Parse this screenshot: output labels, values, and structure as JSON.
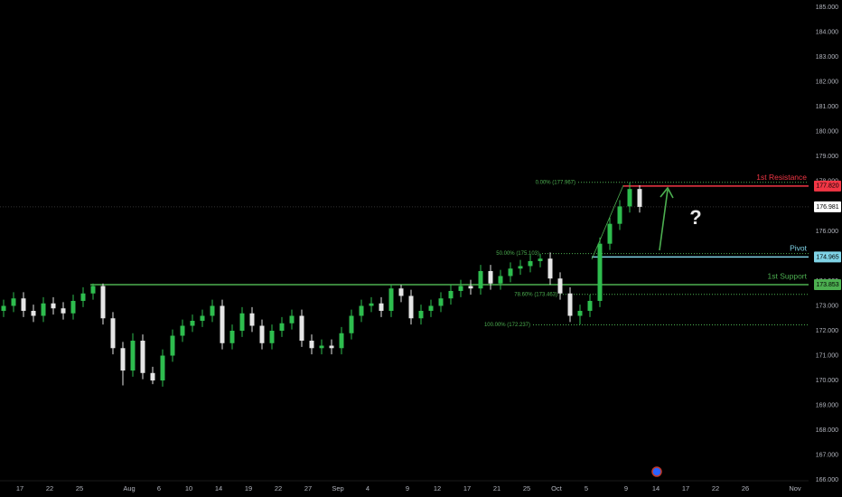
{
  "chart_data": {
    "type": "candlestick",
    "categories": [
      null,
      null,
      "17",
      null,
      null,
      "22",
      null,
      null,
      "25",
      null,
      null,
      null,
      null,
      "Aug",
      null,
      null,
      "6",
      null,
      null,
      "10",
      null,
      null,
      "14",
      null,
      null,
      "19",
      null,
      null,
      "22",
      null,
      null,
      "27",
      null,
      null,
      "Sep",
      null,
      null,
      "4",
      null,
      null,
      null,
      "9",
      null,
      null,
      "12",
      null,
      null,
      "17",
      null,
      null,
      "21",
      null,
      null,
      "25",
      null,
      null,
      "Oct",
      null,
      null,
      "5",
      null,
      null,
      null,
      "9",
      null,
      null,
      "14",
      null,
      null,
      "17",
      null,
      null,
      "22",
      null,
      null,
      "26",
      null,
      null,
      null,
      null,
      "Nov"
    ],
    "open": [
      172.8,
      173.0,
      173.3,
      172.8,
      172.6,
      173.1,
      172.9,
      172.7,
      173.2,
      173.5,
      173.8,
      172.5,
      171.3,
      170.4,
      171.6,
      170.3,
      170.0,
      171.0,
      171.8,
      172.2,
      172.4,
      172.6,
      173.0,
      171.5,
      172.0,
      172.7,
      172.2,
      171.5,
      172.0,
      172.3,
      172.6,
      171.6,
      171.3,
      171.4,
      171.3,
      171.9,
      172.6,
      173.0,
      173.1,
      172.8,
      173.7,
      173.4,
      172.5,
      172.8,
      173.0,
      173.3,
      173.6,
      173.8,
      173.7,
      174.4,
      173.9,
      174.2,
      174.5,
      174.6,
      174.8,
      174.9,
      174.1,
      173.5,
      172.6,
      172.8,
      173.2,
      175.5,
      176.3,
      177.0,
      177.7,
      null,
      null,
      null,
      null,
      null,
      null,
      null,
      null,
      null,
      null,
      null,
      null,
      null,
      null,
      null,
      null
    ],
    "high": [
      173.25,
      173.55,
      173.55,
      173.05,
      173.35,
      173.35,
      173.15,
      173.45,
      173.75,
      173.9,
      173.9,
      172.75,
      171.55,
      171.9,
      171.85,
      170.55,
      171.25,
      172.05,
      172.45,
      172.65,
      172.85,
      173.25,
      173.25,
      172.25,
      172.95,
      172.95,
      172.45,
      172.25,
      172.55,
      172.85,
      172.85,
      171.85,
      171.65,
      171.65,
      172.15,
      172.85,
      173.25,
      173.35,
      173.35,
      173.85,
      173.85,
      173.65,
      173.05,
      173.25,
      173.55,
      173.85,
      174.05,
      174.05,
      174.65,
      174.65,
      174.45,
      174.75,
      174.85,
      175.05,
      175.1,
      175.15,
      174.35,
      173.75,
      173.05,
      173.45,
      175.75,
      176.55,
      177.25,
      177.967,
      177.85,
      null,
      null,
      null,
      null,
      null,
      null,
      null,
      null,
      null,
      null,
      null,
      null,
      null,
      null,
      null,
      null
    ],
    "low": [
      172.55,
      172.75,
      172.55,
      172.35,
      172.35,
      172.65,
      172.45,
      172.45,
      172.95,
      173.25,
      172.25,
      171.05,
      169.8,
      170.15,
      170.05,
      169.85,
      169.75,
      170.75,
      171.55,
      171.95,
      172.15,
      172.35,
      171.25,
      171.25,
      171.75,
      171.95,
      171.25,
      171.25,
      171.75,
      172.05,
      171.35,
      171.05,
      171.05,
      171.05,
      171.05,
      171.65,
      172.35,
      172.75,
      172.55,
      172.55,
      173.15,
      172.25,
      172.25,
      172.55,
      172.75,
      173.05,
      173.35,
      173.45,
      173.45,
      173.65,
      173.65,
      173.95,
      174.25,
      174.35,
      174.55,
      173.85,
      173.25,
      172.35,
      172.25,
      172.55,
      172.95,
      175.25,
      176.05,
      176.75,
      176.75,
      null,
      null,
      null,
      null,
      null,
      null,
      null,
      null,
      null,
      null,
      null,
      null,
      null,
      null,
      null,
      null
    ],
    "close": [
      173.0,
      173.3,
      172.8,
      172.6,
      173.1,
      172.9,
      172.7,
      173.2,
      173.5,
      173.8,
      172.5,
      171.3,
      170.4,
      171.6,
      170.3,
      170.0,
      171.0,
      171.8,
      172.2,
      172.4,
      172.6,
      173.0,
      171.5,
      172.0,
      172.7,
      172.2,
      171.5,
      172.0,
      172.3,
      172.6,
      171.6,
      171.3,
      171.4,
      171.3,
      171.9,
      172.6,
      173.0,
      173.1,
      172.8,
      173.7,
      173.4,
      172.5,
      172.8,
      173.0,
      173.3,
      173.6,
      173.8,
      173.7,
      174.4,
      173.9,
      174.2,
      174.5,
      174.6,
      174.8,
      174.9,
      174.1,
      173.5,
      172.6,
      172.8,
      173.2,
      175.5,
      176.3,
      177.0,
      177.7,
      176.981,
      null,
      null,
      null,
      null,
      null,
      null,
      null,
      null,
      null,
      null,
      null,
      null,
      null,
      null,
      null,
      null
    ],
    "up_color": "#2ebd4e",
    "down_color": "#e6e6e6",
    "ylim": [
      165.75,
      185.3
    ],
    "yticks": [
      {
        "value": 166,
        "label": "166.000"
      },
      {
        "value": 167,
        "label": "167.000"
      },
      {
        "value": 168,
        "label": "168.000"
      },
      {
        "value": 169,
        "label": "169.000"
      },
      {
        "value": 170,
        "label": "170.000"
      },
      {
        "value": 171,
        "label": "171.000"
      },
      {
        "value": 172,
        "label": "172.000"
      },
      {
        "value": 173,
        "label": "173.000"
      },
      {
        "value": 174,
        "label": "174.000"
      },
      {
        "value": 175,
        "label": "175.000"
      },
      {
        "value": 176,
        "label": "176.000"
      },
      {
        "value": 177,
        "label": "177.000"
      },
      {
        "value": 178,
        "label": "178.000"
      },
      {
        "value": 179,
        "label": "179.000"
      },
      {
        "value": 180,
        "label": "180.000"
      },
      {
        "value": 181,
        "label": "181.000"
      },
      {
        "value": 182,
        "label": "182.000"
      },
      {
        "value": 183,
        "label": "183.000"
      },
      {
        "value": 184,
        "label": "184.000"
      },
      {
        "value": 185,
        "label": "185.000"
      }
    ],
    "grid": false,
    "levels": [
      {
        "name": "1st Resistance",
        "price": {
          "value": 177.82,
          "label": "177.820"
        },
        "color": "#f23645"
      },
      {
        "name": "Pivot",
        "price": {
          "value": 174.965,
          "label": "174.965"
        },
        "color": "#7fd3e6"
      },
      {
        "name": "1st Support",
        "price": {
          "value": 173.853,
          "label": "173.853"
        },
        "color": "#4caf50"
      }
    ],
    "last_price": {
      "value": 176.981,
      "label": "176.981"
    },
    "fib": [
      {
        "label": "0.00% (177.967)",
        "value": 177.967
      },
      {
        "label": "50.00% (175.103)",
        "value": 175.103
      },
      {
        "label": "78.60% (173.463)",
        "value": 173.463
      },
      {
        "label": "100.00% (172.237)",
        "value": 172.237
      }
    ],
    "fib_color": "#4caf50",
    "annotation": "?"
  }
}
